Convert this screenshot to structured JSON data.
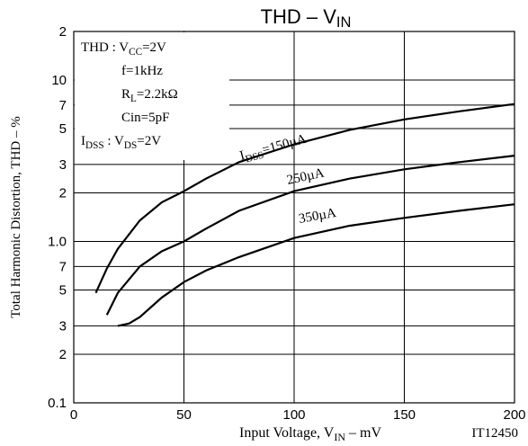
{
  "chart_data": {
    "type": "line",
    "title": [
      "THD  –  V",
      "IN"
    ],
    "x_label": [
      "Input Voltage, V",
      "IN",
      "  –  mV"
    ],
    "y_label": "Total Harmonic Distortion, THD  –  %",
    "code": "IT12450",
    "conditions": [
      [
        "THD : V",
        "CC",
        "=2V"
      ],
      [
        "f=1kHz"
      ],
      [
        "R",
        "L",
        "=2.2kΩ"
      ],
      [
        "Cin=5pF"
      ],
      [
        "I",
        "DSS",
        " : V",
        "DS",
        "=2V"
      ]
    ],
    "xlim": [
      0,
      200
    ],
    "xticks": [
      0,
      50,
      100,
      150,
      200
    ],
    "ylim": [
      0.1,
      20
    ],
    "log_y": true,
    "grid": true,
    "yticks": [
      {
        "value": 0.1,
        "label": "0.1"
      },
      {
        "value": 0.2,
        "label": "2"
      },
      {
        "value": 0.3,
        "label": "3"
      },
      {
        "value": 0.5,
        "label": "5"
      },
      {
        "value": 0.7,
        "label": "7"
      },
      {
        "value": 1,
        "label": "1.0"
      },
      2,
      3,
      5,
      7,
      10,
      {
        "value": 20,
        "label": "2"
      }
    ],
    "series": [
      {
        "label": [
          "I",
          "DSS",
          "=150µA"
        ],
        "color": "#000000",
        "x": [
          10,
          15,
          20,
          30,
          40,
          50,
          60,
          75,
          100,
          125,
          150,
          175,
          200
        ],
        "values": [
          0.48,
          0.68,
          0.9,
          1.35,
          1.75,
          2.05,
          2.45,
          3.1,
          4.0,
          4.9,
          5.7,
          6.4,
          7.1
        ]
      },
      {
        "label": [
          "250µA"
        ],
        "color": "#000000",
        "x": [
          15,
          20,
          30,
          40,
          50,
          60,
          75,
          100,
          125,
          150,
          175,
          200
        ],
        "values": [
          0.35,
          0.48,
          0.7,
          0.87,
          1.0,
          1.2,
          1.55,
          2.05,
          2.45,
          2.8,
          3.1,
          3.4
        ]
      },
      {
        "label": [
          "350µA"
        ],
        "color": "#000000",
        "x": [
          20,
          25,
          30,
          40,
          50,
          60,
          75,
          100,
          125,
          150,
          175,
          200
        ],
        "values": [
          0.3,
          0.31,
          0.34,
          0.45,
          0.56,
          0.66,
          0.8,
          1.05,
          1.25,
          1.4,
          1.55,
          1.7
        ]
      }
    ]
  }
}
